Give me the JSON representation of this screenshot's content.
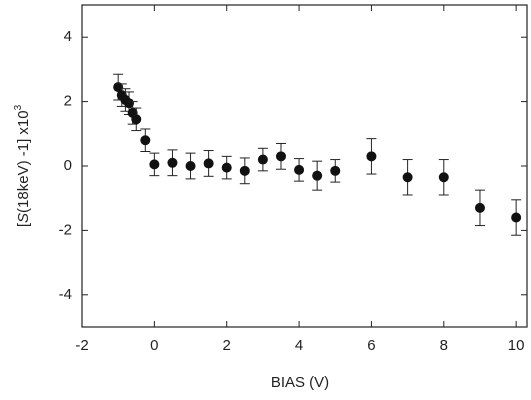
{
  "chart_data": {
    "type": "scatter",
    "xlabel": "BIAS (V)",
    "ylabel_parts": [
      "[",
      "S",
      "(18keV) -1] x10",
      "3"
    ],
    "x": [
      -1.0,
      -0.9,
      -0.8,
      -0.7,
      -0.6,
      -0.5,
      -0.25,
      0,
      0.5,
      1.0,
      1.5,
      2.0,
      2.5,
      3.0,
      3.5,
      4.0,
      4.5,
      5.0,
      6.0,
      7.0,
      8.0,
      9.0,
      10.0
    ],
    "values": [
      2.45,
      2.2,
      2.05,
      1.95,
      1.65,
      1.45,
      0.8,
      0.05,
      0.1,
      0.0,
      0.08,
      -0.05,
      -0.15,
      0.2,
      0.3,
      -0.12,
      -0.3,
      -0.15,
      0.3,
      -0.35,
      -0.35,
      -1.3,
      -1.6
    ],
    "errors": [
      0.4,
      0.35,
      0.35,
      0.35,
      0.35,
      0.35,
      0.35,
      0.35,
      0.4,
      0.4,
      0.4,
      0.35,
      0.4,
      0.35,
      0.4,
      0.35,
      0.45,
      0.35,
      0.55,
      0.55,
      0.55,
      0.55,
      0.55
    ],
    "color": "#111111",
    "xlim": [
      -2,
      10.3
    ],
    "ylim": [
      -5,
      5
    ],
    "xticks": [
      -2,
      0,
      2,
      4,
      6,
      8,
      10
    ],
    "yticks": [
      -4,
      -2,
      0,
      2,
      4
    ]
  }
}
